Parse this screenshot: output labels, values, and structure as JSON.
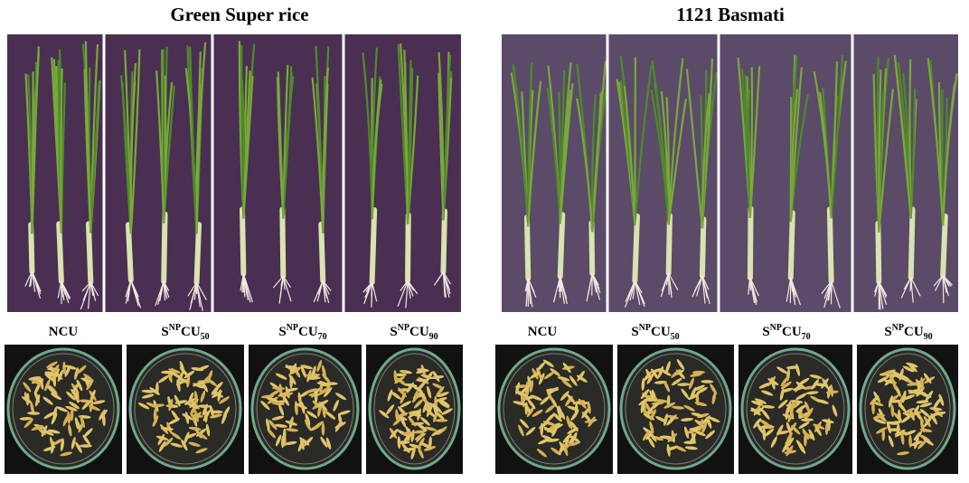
{
  "panels": [
    {
      "title": "Green Super rice",
      "labels": [
        {
          "main": "NCU"
        },
        {
          "base": "S",
          "sup": "NP",
          "main": "CU",
          "sub": "50"
        },
        {
          "base": "S",
          "sup": "NP",
          "main": "CU",
          "sub": "70"
        },
        {
          "base": "S",
          "sup": "NP",
          "main": "CU",
          "sub": "90"
        }
      ]
    },
    {
      "title": "1121 Basmati",
      "labels": [
        {
          "main": "NCU"
        },
        {
          "base": "S",
          "sup": "NP",
          "main": "CU",
          "sub": "50"
        },
        {
          "base": "S",
          "sup": "NP",
          "main": "CU",
          "sub": "70"
        },
        {
          "base": "S",
          "sup": "NP",
          "main": "CU",
          "sub": "90"
        }
      ]
    }
  ]
}
